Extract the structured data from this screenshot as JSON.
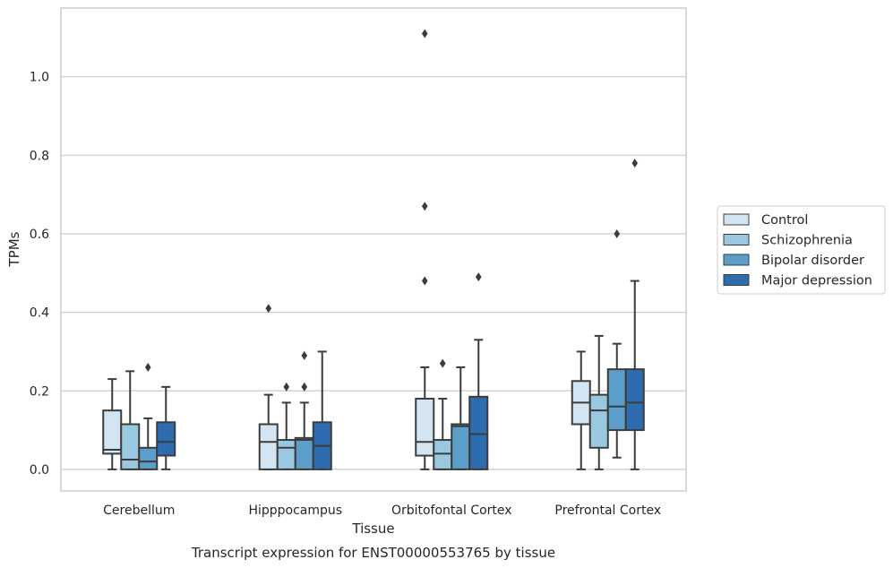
{
  "chart_data": {
    "type": "box",
    "xlabel": "Tissue",
    "ylabel": "TPMs",
    "caption": "Transcript expression for ENST00000553765 by tissue",
    "ylim": [
      -0.055,
      1.175
    ],
    "yticks": [
      "0.0",
      "0.2",
      "0.4",
      "0.6",
      "0.8",
      "1.0"
    ],
    "grid": "horizontal",
    "legend_position": "right",
    "categories": [
      "Cerebellum",
      "Hipppocampus",
      "Orbitofontal Cortex",
      "Prefrontal Cortex"
    ],
    "series": [
      {
        "name": "Control",
        "color": "#d3e4f3",
        "boxes": [
          {
            "q1": 0.04,
            "median": 0.05,
            "q3": 0.15,
            "whislo": 0.0,
            "whishi": 0.23,
            "fliers": []
          },
          {
            "q1": 0.0,
            "median": 0.07,
            "q3": 0.115,
            "whislo": 0.0,
            "whishi": 0.19,
            "fliers": [
              0.41
            ]
          },
          {
            "q1": 0.035,
            "median": 0.07,
            "q3": 0.18,
            "whislo": 0.0,
            "whishi": 0.26,
            "fliers": [
              0.48,
              0.67,
              1.11
            ]
          },
          {
            "q1": 0.115,
            "median": 0.17,
            "q3": 0.225,
            "whislo": 0.0,
            "whishi": 0.3,
            "fliers": []
          }
        ]
      },
      {
        "name": "Schizophrenia",
        "color": "#9ac8e0",
        "boxes": [
          {
            "q1": 0.0,
            "median": 0.025,
            "q3": 0.115,
            "whislo": 0.0,
            "whishi": 0.25,
            "fliers": []
          },
          {
            "q1": 0.0,
            "median": 0.055,
            "q3": 0.075,
            "whislo": 0.0,
            "whishi": 0.17,
            "fliers": [
              0.21
            ]
          },
          {
            "q1": 0.0,
            "median": 0.04,
            "q3": 0.075,
            "whislo": 0.0,
            "whishi": 0.18,
            "fliers": [
              0.27
            ]
          },
          {
            "q1": 0.055,
            "median": 0.15,
            "q3": 0.19,
            "whislo": 0.0,
            "whishi": 0.34,
            "fliers": []
          }
        ]
      },
      {
        "name": "Bipolar disorder",
        "color": "#5a9ec9",
        "boxes": [
          {
            "q1": 0.0,
            "median": 0.02,
            "q3": 0.055,
            "whislo": 0.0,
            "whishi": 0.13,
            "fliers": [
              0.26
            ]
          },
          {
            "q1": 0.0,
            "median": 0.075,
            "q3": 0.08,
            "whislo": 0.0,
            "whishi": 0.17,
            "fliers": [
              0.21,
              0.29
            ]
          },
          {
            "q1": 0.0,
            "median": 0.11,
            "q3": 0.115,
            "whislo": 0.0,
            "whishi": 0.26,
            "fliers": []
          },
          {
            "q1": 0.1,
            "median": 0.16,
            "q3": 0.255,
            "whislo": 0.03,
            "whishi": 0.32,
            "fliers": [
              0.6
            ]
          }
        ]
      },
      {
        "name": "Major depression",
        "color": "#2d6daf",
        "boxes": [
          {
            "q1": 0.035,
            "median": 0.07,
            "q3": 0.12,
            "whislo": 0.0,
            "whishi": 0.21,
            "fliers": []
          },
          {
            "q1": 0.0,
            "median": 0.06,
            "q3": 0.12,
            "whislo": 0.0,
            "whishi": 0.3,
            "fliers": []
          },
          {
            "q1": 0.0,
            "median": 0.09,
            "q3": 0.185,
            "whislo": 0.0,
            "whishi": 0.33,
            "fliers": [
              0.49
            ]
          },
          {
            "q1": 0.1,
            "median": 0.17,
            "q3": 0.255,
            "whislo": 0.0,
            "whishi": 0.48,
            "fliers": [
              0.78
            ]
          }
        ]
      }
    ]
  }
}
